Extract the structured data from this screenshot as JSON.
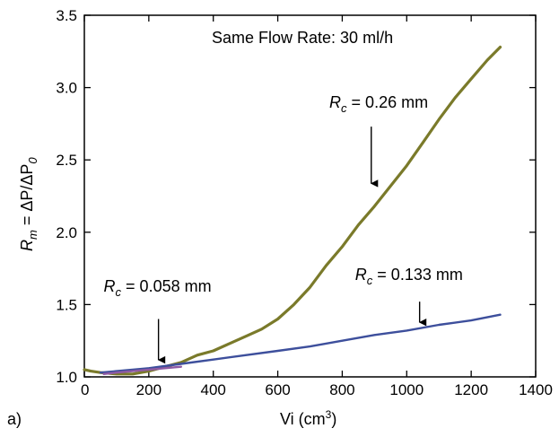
{
  "chart_data": {
    "type": "line",
    "panel_label": "a)",
    "subtitle": "Same Flow Rate: 30 ml/h",
    "xlabel": {
      "text": "Vi (cm",
      "superscript": "3",
      "suffix": ")"
    },
    "ylabel": {
      "text": "R",
      "subscript": "m",
      "rest": " = ΔP/ΔP",
      "subscript2": "0"
    },
    "xlim": [
      0,
      1400
    ],
    "ylim": [
      1.0,
      3.5
    ],
    "xticks": [
      0,
      200,
      400,
      600,
      800,
      1000,
      1200,
      1400
    ],
    "yticks": [
      1.0,
      1.5,
      2.0,
      2.5,
      3.0,
      3.5
    ],
    "xtick_labels": [
      "0",
      "200",
      "400",
      "600",
      "800",
      "1000",
      "1200",
      "1400"
    ],
    "ytick_labels": [
      "1.0",
      "1.5",
      "2.0",
      "2.5",
      "3.0",
      "3.5"
    ],
    "grid": false,
    "series": [
      {
        "label": {
          "prefix": "R",
          "subscript": "c",
          "value": " = 0.26 mm"
        },
        "color": "#7a7a2a",
        "x": [
          0,
          20,
          50,
          100,
          150,
          200,
          250,
          300,
          350,
          400,
          450,
          500,
          550,
          600,
          650,
          700,
          750,
          800,
          850,
          900,
          950,
          1000,
          1050,
          1100,
          1150,
          1200,
          1250,
          1290
        ],
        "y": [
          1.05,
          1.04,
          1.03,
          1.02,
          1.02,
          1.04,
          1.07,
          1.1,
          1.15,
          1.18,
          1.23,
          1.28,
          1.33,
          1.4,
          1.5,
          1.62,
          1.77,
          1.9,
          2.05,
          2.18,
          2.32,
          2.46,
          2.62,
          2.78,
          2.93,
          3.06,
          3.19,
          3.28
        ],
        "annotation_x": 890,
        "arrow_tip_y": 2.3,
        "arrow_tail_y": 2.73,
        "text_at": [
          760,
          2.86
        ]
      },
      {
        "label": {
          "prefix": "R",
          "subscript": "c",
          "value": " = 0.133 mm"
        },
        "color": "#3d4f9c",
        "x": [
          50,
          100,
          200,
          300,
          400,
          500,
          600,
          700,
          800,
          900,
          1000,
          1100,
          1200,
          1290
        ],
        "y": [
          1.03,
          1.04,
          1.06,
          1.09,
          1.12,
          1.15,
          1.18,
          1.21,
          1.25,
          1.29,
          1.32,
          1.36,
          1.39,
          1.43
        ],
        "annotation_x": 1040,
        "arrow_tip_y": 1.34,
        "arrow_tail_y": 1.52,
        "text_at": [
          840,
          1.67
        ]
      },
      {
        "label": {
          "prefix": "R",
          "subscript": "c",
          "value": " = 0.058 mm"
        },
        "color": "#8e5aa4",
        "x": [
          60,
          100,
          150,
          200,
          250,
          300
        ],
        "y": [
          1.02,
          1.03,
          1.04,
          1.05,
          1.06,
          1.07
        ],
        "annotation_x": 230,
        "arrow_tip_y": 1.08,
        "arrow_tail_y": 1.4,
        "text_at": [
          60,
          1.59
        ]
      }
    ]
  }
}
